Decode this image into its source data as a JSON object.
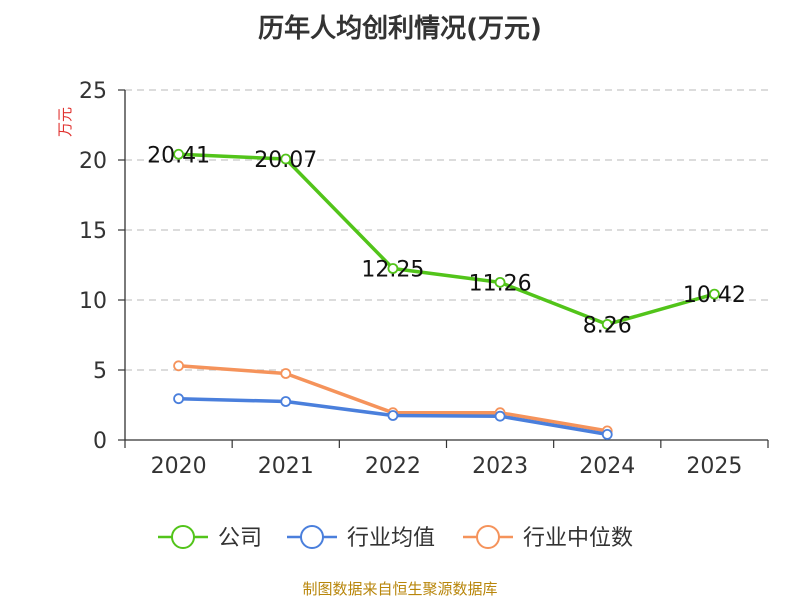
{
  "title": "历年人均创利情况(万元)",
  "source": "制图数据来自恒生聚源数据库",
  "chart_data": {
    "type": "line",
    "categories": [
      "2020",
      "2021",
      "2022",
      "2023",
      "2024",
      "2025"
    ],
    "ylabel": "万元",
    "ylim": [
      0,
      25
    ],
    "yticks": [
      0,
      5,
      10,
      15,
      20,
      25
    ],
    "grid": true,
    "legend_position": "bottom",
    "series": [
      {
        "name": "公司",
        "color": "#52c41a",
        "values": [
          20.41,
          20.07,
          12.25,
          11.26,
          8.26,
          10.42
        ],
        "labels": [
          "20.41",
          "20.07",
          "12.25",
          "11.26",
          "8.26",
          "10.42"
        ]
      },
      {
        "name": "行业均值",
        "color": "#4a7fdc",
        "values": [
          2.95,
          2.75,
          1.75,
          1.7,
          0.4,
          null
        ]
      },
      {
        "name": "行业中位数",
        "color": "#f5935b",
        "values": [
          5.3,
          4.75,
          1.95,
          1.95,
          0.65,
          null
        ]
      }
    ],
    "unit_color": "#e0322f"
  }
}
